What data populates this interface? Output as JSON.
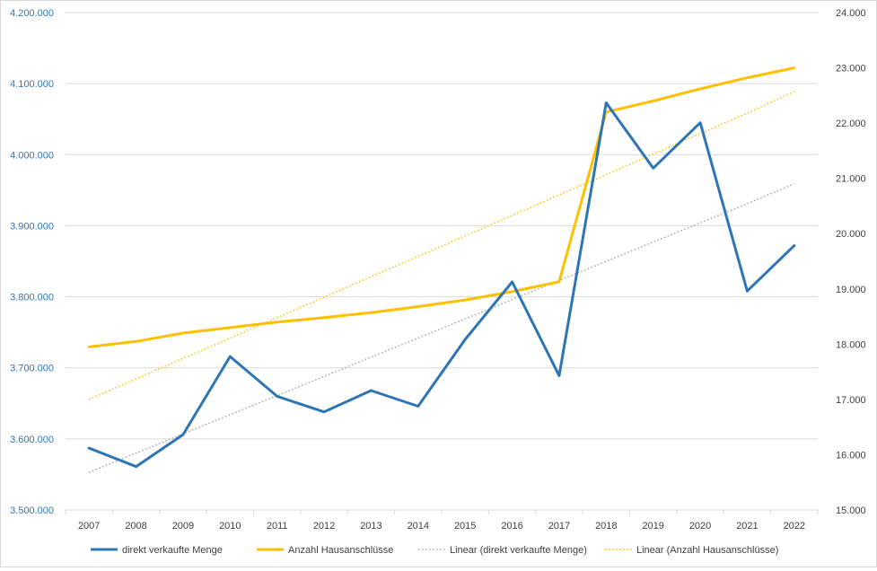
{
  "chart_data": {
    "type": "line",
    "categories": [
      "2007",
      "2008",
      "2009",
      "2010",
      "2011",
      "2012",
      "2013",
      "2014",
      "2015",
      "2016",
      "2017",
      "2018",
      "2019",
      "2020",
      "2021",
      "2022"
    ],
    "y_left": {
      "ylim": [
        3500000,
        4200000
      ],
      "ticks": [
        3500000,
        3600000,
        3700000,
        3800000,
        3900000,
        4000000,
        4100000,
        4200000
      ],
      "tick_labels": [
        "3.500.000",
        "3.600.000",
        "3.700.000",
        "3.800.000",
        "3.900.000",
        "4.000.000",
        "4.100.000",
        "4.200.000"
      ],
      "color": "#2e75b6"
    },
    "y_right": {
      "ylim": [
        15000,
        24000
      ],
      "ticks": [
        15000,
        16000,
        17000,
        18000,
        19000,
        20000,
        21000,
        22000,
        23000,
        24000
      ],
      "tick_labels": [
        "15.000",
        "16.000",
        "17.000",
        "18.000",
        "19.000",
        "20.000",
        "21.000",
        "22.000",
        "23.000",
        "24.000"
      ]
    },
    "grid": true,
    "legend_position": "bottom",
    "series": [
      {
        "name": "direkt verkaufte Menge",
        "axis": "left",
        "style": "solid",
        "color": "#2e75b6",
        "values": [
          3587000,
          3561000,
          3606000,
          3716000,
          3660000,
          3638000,
          3668000,
          3646000,
          3740000,
          3821000,
          3689000,
          4073000,
          3981000,
          4045000,
          3808000,
          3872000
        ]
      },
      {
        "name": "Anzahl Hausanschlüsse",
        "axis": "right",
        "style": "solid",
        "color": "#ffc000",
        "values": [
          17950,
          18050,
          18200,
          18300,
          18400,
          18480,
          18570,
          18680,
          18800,
          18950,
          19130,
          22200,
          22400,
          22620,
          22820,
          23000
        ]
      },
      {
        "name": "Linear (direkt verkaufte Menge)",
        "axis": "left",
        "style": "dotted",
        "color": "#a5a5a5",
        "values": [
          3553000,
          3580000,
          3607000,
          3634000,
          3661000,
          3688000,
          3715000,
          3742000,
          3769000,
          3796000,
          3823000,
          3850000,
          3877000,
          3904000,
          3931000,
          3959000
        ]
      },
      {
        "name": "Linear (Anzahl Hausanschlüsse)",
        "axis": "right",
        "style": "dotted",
        "color": "#ffc000",
        "values": [
          17000,
          17370,
          17740,
          18110,
          18480,
          18850,
          19220,
          19590,
          19960,
          20330,
          20700,
          21070,
          21440,
          21810,
          22180,
          22570
        ]
      }
    ]
  }
}
